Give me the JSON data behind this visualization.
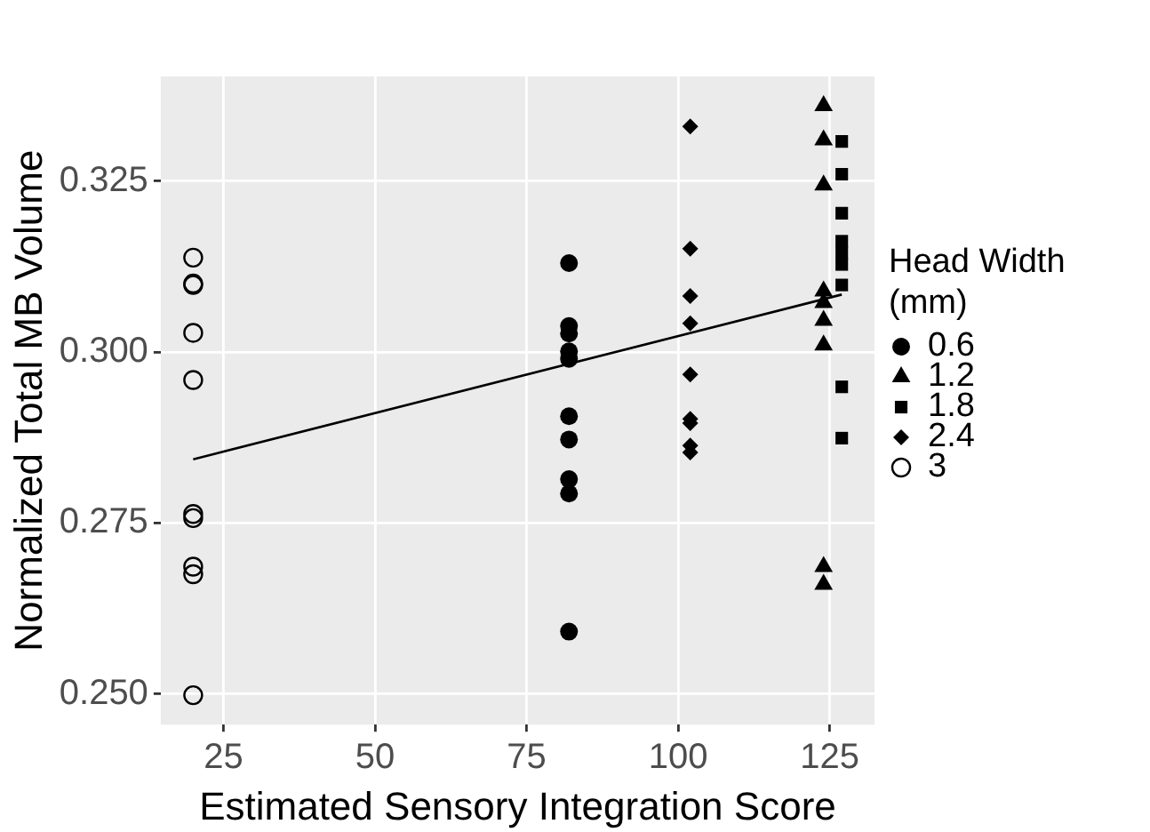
{
  "chart_data": {
    "type": "scatter",
    "xlabel": "Estimated Sensory Integration Score",
    "ylabel": "Normalized Total MB Volume",
    "legend_title": "Head Width (mm)",
    "legend": "right",
    "grid": true,
    "xlim": [
      14.65,
      132.4
    ],
    "xticks": [
      25,
      50,
      75,
      100,
      125
    ],
    "ylim": [
      0.2455,
      0.3403
    ],
    "yticks": [
      {
        "value": 0.25,
        "label": "0.250"
      },
      0.275,
      {
        "value": 0.3,
        "label": "0.300"
      },
      0.325
    ],
    "series": [
      {
        "name": "0.6",
        "color": "#000000",
        "marker": "circle",
        "x": [
          82,
          82,
          82,
          82,
          82,
          82,
          82,
          82,
          82,
          82
        ],
        "values": [
          0.313,
          0.3038,
          0.3027,
          0.3001,
          0.299,
          0.2906,
          0.2872,
          0.2814,
          0.2793,
          0.2591
        ]
      },
      {
        "name": "1.2",
        "color": "#000000",
        "marker": "triangle",
        "x": [
          124,
          124,
          124,
          124,
          124,
          124,
          124,
          124,
          124
        ],
        "values": [
          0.336,
          0.331,
          0.3244,
          0.3089,
          0.3072,
          0.3046,
          0.301,
          0.2686,
          0.266
        ]
      },
      {
        "name": "1.8",
        "color": "#000000",
        "marker": "square",
        "x": [
          127,
          127,
          127,
          127,
          127,
          127,
          127,
          127,
          127
        ],
        "values": [
          0.3308,
          0.326,
          0.3203,
          0.3162,
          0.3145,
          0.3128,
          0.3098,
          0.2949,
          0.2874
        ]
      },
      {
        "name": "2.4",
        "color": "#000000",
        "marker": "diamond",
        "x": [
          102,
          102,
          102,
          102,
          102,
          102,
          102,
          102,
          102
        ],
        "values": [
          0.333,
          0.3151,
          0.3082,
          0.3042,
          0.2967,
          0.2902,
          0.2896,
          0.2863,
          0.2853
        ]
      },
      {
        "name": "3",
        "color": "#000000",
        "marker": "circle-open",
        "x": [
          20,
          20,
          20,
          20,
          20,
          20,
          20,
          20,
          20,
          20
        ],
        "values": [
          0.3138,
          0.31,
          0.3098,
          0.3028,
          0.2959,
          0.2763,
          0.2757,
          0.2686,
          0.2675,
          0.2498
        ]
      },
      {
        "type": "line",
        "color": "#000000",
        "marker": "none",
        "x": [
          20,
          127
        ],
        "values": [
          0.2843,
          0.3084
        ]
      }
    ]
  }
}
